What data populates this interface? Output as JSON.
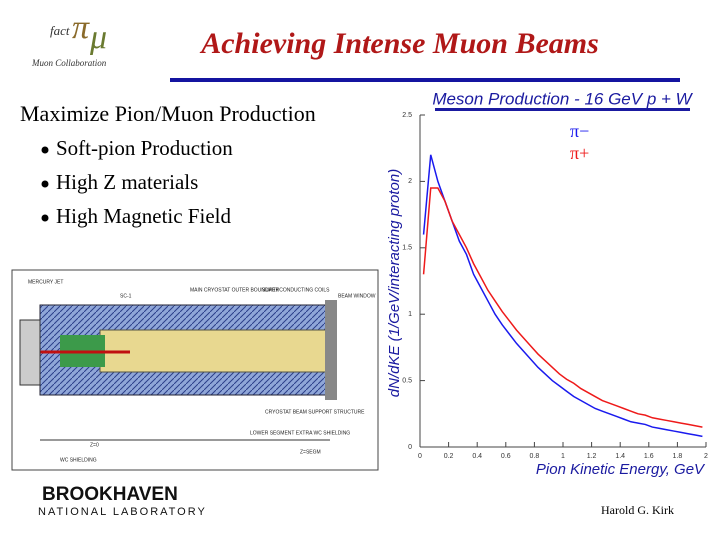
{
  "header": {
    "logo_text": "fact",
    "logo_caption": "Muon Collaboration",
    "title": "Achieving Intense Muon Beams"
  },
  "body": {
    "heading": "Maximize Pion/Muon Production",
    "bullets": [
      "Soft-pion Production",
      "High Z materials",
      "High Magnetic Field"
    ]
  },
  "drawing": {
    "labels": [
      "MERCURY JET",
      "SC-1",
      "MAIN CRYOSTAT OUTER BOUNDARY",
      "SUPERCONDUCTING COILS",
      "BEAM WINDOW",
      "CRYOSTAT BEAM SUPPORT STRUCTURE",
      "LOWER SEGMENT EXTRA WC SHIELDING",
      "Z=0",
      "WC SHIELDING",
      "Z=SEGM"
    ]
  },
  "chart_data": {
    "type": "line",
    "title": "Meson Production - 16 GeV  p + W",
    "x_label": "Pion Kinetic Energy, GeV",
    "y_label": "dN/dKE (1/GeV/interacting proton)",
    "x": [
      0.025,
      0.075,
      0.125,
      0.175,
      0.225,
      0.275,
      0.325,
      0.375,
      0.425,
      0.475,
      0.525,
      0.575,
      0.625,
      0.675,
      0.725,
      0.775,
      0.825,
      0.875,
      0.925,
      0.975,
      1.025,
      1.075,
      1.125,
      1.175,
      1.225,
      1.275,
      1.325,
      1.375,
      1.425,
      1.475,
      1.525,
      1.575,
      1.625,
      1.675,
      1.725,
      1.775,
      1.825,
      1.875,
      1.925,
      1.975
    ],
    "series": [
      {
        "name": "π−",
        "color": "#1a1aee",
        "values": [
          1.6,
          2.2,
          2.0,
          1.85,
          1.7,
          1.55,
          1.45,
          1.3,
          1.2,
          1.1,
          1.0,
          0.92,
          0.85,
          0.78,
          0.72,
          0.66,
          0.6,
          0.55,
          0.5,
          0.46,
          0.42,
          0.38,
          0.35,
          0.32,
          0.29,
          0.27,
          0.25,
          0.23,
          0.21,
          0.19,
          0.18,
          0.17,
          0.15,
          0.14,
          0.13,
          0.12,
          0.11,
          0.1,
          0.09,
          0.08
        ]
      },
      {
        "name": "π+",
        "color": "#ee1a1a",
        "values": [
          1.3,
          1.95,
          1.95,
          1.85,
          1.7,
          1.6,
          1.5,
          1.38,
          1.28,
          1.18,
          1.1,
          1.02,
          0.95,
          0.88,
          0.82,
          0.76,
          0.7,
          0.65,
          0.6,
          0.55,
          0.51,
          0.48,
          0.44,
          0.41,
          0.38,
          0.35,
          0.33,
          0.31,
          0.29,
          0.27,
          0.25,
          0.24,
          0.22,
          0.21,
          0.2,
          0.19,
          0.18,
          0.17,
          0.16,
          0.15
        ]
      }
    ],
    "xlim": [
      0,
      2
    ],
    "ylim": [
      0,
      2.5
    ],
    "xticks": [
      0,
      0.2,
      0.4,
      0.6,
      0.8,
      1,
      1.2,
      1.4,
      1.6,
      1.8,
      2
    ],
    "yticks": [
      0,
      0.5,
      1,
      1.5,
      2,
      2.5
    ],
    "legend": "upper right"
  },
  "footer": {
    "lab_name": "BROOKHAVEN",
    "lab_sub": "NATIONAL LABORATORY",
    "author": "Harold G. Kirk"
  }
}
